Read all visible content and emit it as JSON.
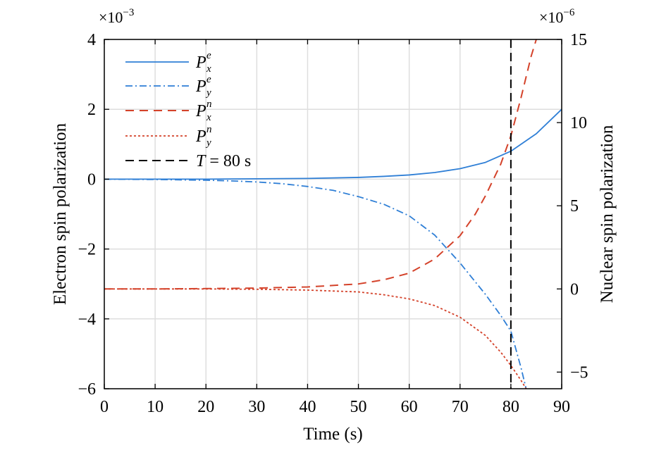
{
  "chart_data": {
    "type": "line",
    "xlabel": "Time (s)",
    "ylabel_left": "Electron spin polarization",
    "ylabel_right": "Nuclear spin polarization",
    "multiplier_left": "×10",
    "multiplier_left_exp": "−3",
    "multiplier_right": "×10",
    "multiplier_right_exp": "−6",
    "xlim": [
      0,
      90
    ],
    "ylim_left": [
      -6,
      4
    ],
    "ylim_right": [
      -6,
      15
    ],
    "x_ticks": [
      "0",
      "10",
      "20",
      "30",
      "40",
      "50",
      "60",
      "70",
      "80",
      "90"
    ],
    "y_ticks_left": [
      "4",
      "2",
      "0",
      "−2",
      "−4",
      "−6"
    ],
    "y_ticks_right": [
      "15",
      "10",
      "5",
      "0",
      "−5"
    ],
    "grid": true,
    "legend_position": "top-left",
    "vline": {
      "x": 80,
      "label_var": "T",
      "label_rest": " = 80 s",
      "color": "#000000"
    },
    "series": [
      {
        "name": "P",
        "sup": "e",
        "sub": "x",
        "axis": "left",
        "color": "#2f7fd6",
        "style": "solid",
        "x": [
          0,
          10,
          20,
          30,
          40,
          50,
          55,
          60,
          65,
          70,
          75,
          80,
          85,
          90
        ],
        "y": [
          0.0,
          0.0,
          0.0,
          0.01,
          0.02,
          0.05,
          0.08,
          0.12,
          0.19,
          0.3,
          0.48,
          0.8,
          1.3,
          2.0
        ]
      },
      {
        "name": "P",
        "sup": "e",
        "sub": "y",
        "axis": "left",
        "color": "#2f7fd6",
        "style": "dashdot",
        "x": [
          0,
          10,
          20,
          25,
          30,
          35,
          40,
          45,
          50,
          55,
          60,
          65,
          70,
          75,
          78,
          80,
          82,
          83
        ],
        "y": [
          0.0,
          -0.01,
          -0.03,
          -0.05,
          -0.08,
          -0.13,
          -0.21,
          -0.32,
          -0.5,
          -0.72,
          -1.05,
          -1.6,
          -2.4,
          -3.3,
          -3.9,
          -4.35,
          -5.4,
          -6.0
        ]
      },
      {
        "name": "P",
        "sup": "n",
        "sub": "x",
        "axis": "right",
        "color": "#d4422a",
        "style": "dashed",
        "x": [
          0,
          10,
          20,
          30,
          40,
          50,
          55,
          60,
          65,
          70,
          73,
          75,
          78,
          80,
          82,
          84,
          85
        ],
        "y": [
          0.0,
          0.0,
          0.02,
          0.05,
          0.12,
          0.3,
          0.55,
          0.95,
          1.8,
          3.2,
          4.5,
          5.6,
          7.5,
          9.2,
          11.5,
          14.0,
          15.0
        ]
      },
      {
        "name": "P",
        "sup": "n",
        "sub": "y",
        "axis": "right",
        "color": "#d4422a",
        "style": "dotted",
        "x": [
          0,
          10,
          20,
          30,
          40,
          50,
          55,
          60,
          65,
          70,
          75,
          78,
          80,
          82,
          83
        ],
        "y": [
          0.0,
          0.0,
          0.0,
          -0.02,
          -0.07,
          -0.18,
          -0.35,
          -0.6,
          -1.0,
          -1.7,
          -2.8,
          -3.8,
          -4.6,
          -5.5,
          -6.0
        ]
      }
    ]
  }
}
